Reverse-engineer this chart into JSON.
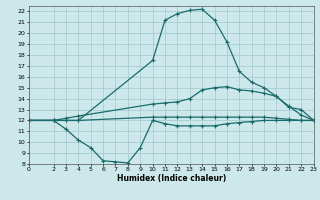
{
  "title": "",
  "xlabel": "Humidex (Indice chaleur)",
  "xlim": [
    0,
    23
  ],
  "ylim": [
    8,
    22.5
  ],
  "yticks": [
    8,
    9,
    10,
    11,
    12,
    13,
    14,
    15,
    16,
    17,
    18,
    19,
    20,
    21,
    22
  ],
  "xticks": [
    0,
    2,
    3,
    4,
    5,
    6,
    7,
    8,
    9,
    10,
    11,
    12,
    13,
    14,
    15,
    16,
    17,
    18,
    19,
    20,
    21,
    22,
    23
  ],
  "bg_color": "#cde8ea",
  "grid_color": "#a0c8cc",
  "line_color": "#1a6b6b",
  "line_width": 0.9,
  "marker": "+",
  "marker_size": 3,
  "series": {
    "max": {
      "x": [
        0,
        2,
        3,
        4,
        10,
        11,
        12,
        13,
        14,
        15,
        16,
        17,
        18,
        19,
        20,
        21,
        22,
        23
      ],
      "y": [
        12,
        12,
        12,
        12,
        17.5,
        21.2,
        21.8,
        22.1,
        22.2,
        21.2,
        19.2,
        16.5,
        15.5,
        15.0,
        14.2,
        13.2,
        13.0,
        12.0
      ]
    },
    "mean": {
      "x": [
        0,
        2,
        3,
        4,
        10,
        11,
        12,
        13,
        14,
        15,
        16,
        17,
        18,
        19,
        20,
        21,
        22,
        23
      ],
      "y": [
        12,
        12,
        12.2,
        12.4,
        13.5,
        13.6,
        13.7,
        14.0,
        14.8,
        15.0,
        15.1,
        14.8,
        14.7,
        14.5,
        14.2,
        13.3,
        12.5,
        12.0
      ]
    },
    "avg": {
      "x": [
        0,
        2,
        3,
        4,
        10,
        11,
        12,
        13,
        14,
        15,
        16,
        17,
        18,
        19,
        20,
        21,
        22,
        23
      ],
      "y": [
        12,
        12,
        12,
        12,
        12.3,
        12.3,
        12.3,
        12.3,
        12.3,
        12.3,
        12.3,
        12.3,
        12.3,
        12.3,
        12.2,
        12.1,
        12.0,
        12.0
      ]
    },
    "min": {
      "x": [
        0,
        2,
        3,
        4,
        5,
        6,
        7,
        8,
        9,
        10,
        11,
        12,
        13,
        14,
        15,
        16,
        17,
        18,
        19,
        20,
        21,
        22,
        23
      ],
      "y": [
        12,
        12,
        11.2,
        10.2,
        9.5,
        8.3,
        8.2,
        8.1,
        9.5,
        12.0,
        11.7,
        11.5,
        11.5,
        11.5,
        11.5,
        11.7,
        11.8,
        11.9,
        12.0,
        12.0,
        12.0,
        12.0,
        12.0
      ]
    }
  }
}
